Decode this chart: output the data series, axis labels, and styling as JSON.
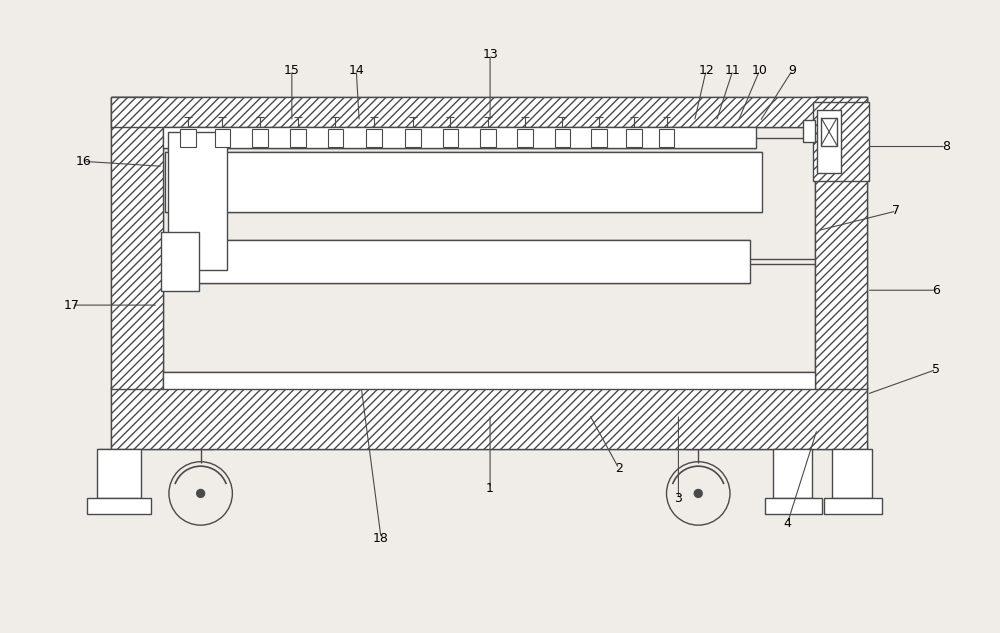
{
  "bg_color": "#f0ede8",
  "line_color": "#4a4a4a",
  "fig_width": 10.0,
  "fig_height": 6.33,
  "dpi": 100,
  "lw": 1.0
}
